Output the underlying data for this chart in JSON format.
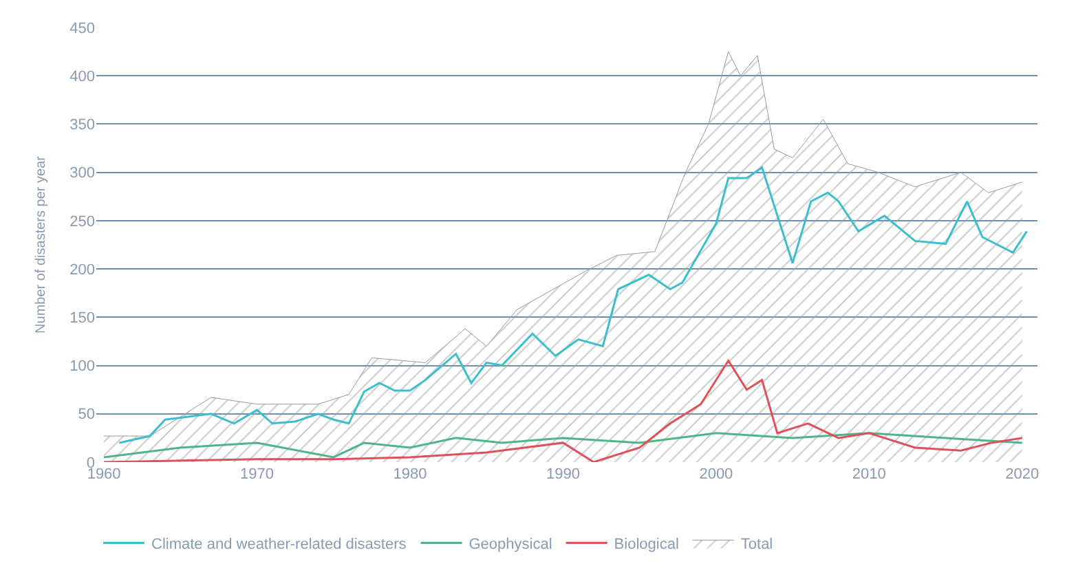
{
  "chart_data": {
    "type": "line",
    "ylabel": "Number of disasters per year",
    "xlim": [
      1959.5,
      2021
    ],
    "xticks": [
      1960,
      1970,
      1980,
      1990,
      2000,
      2010,
      2020
    ],
    "ylim": [
      0,
      450
    ],
    "yticks": [
      0,
      50,
      100,
      150,
      200,
      250,
      300,
      350,
      400,
      450
    ],
    "grid": "y",
    "legend": "bottom",
    "marker": "none",
    "line_style": "solid",
    "series": [
      {
        "name": "Total",
        "type": "area",
        "color": "#9a9a9a",
        "x": [
          1960,
          1963,
          1967,
          1970,
          1974,
          1976,
          1977.5,
          1981,
          1983.6,
          1985,
          1987,
          1991.5,
          1993.5,
          1996,
          1998,
          1999.5,
          2000.8,
          2001.6,
          2002.7,
          2003.8,
          2005,
          2007,
          2008.6,
          2010.6,
          2013,
          2016,
          2017.8,
          2020
        ],
        "values": [
          27,
          27,
          67,
          60,
          60,
          70,
          108,
          103,
          138,
          120,
          158,
          198,
          214,
          218,
          300,
          350,
          425,
          400,
          421,
          324,
          315,
          355,
          309,
          300,
          285,
          300,
          279,
          290
        ]
      },
      {
        "name": "Climate and weather-related disasters",
        "color": "#3bbfcf",
        "x": [
          1961,
          1963,
          1964,
          1967,
          1968.5,
          1970,
          1971,
          1972.5,
          1974,
          1975,
          1976,
          1977,
          1978,
          1979,
          1980,
          1981,
          1983,
          1984,
          1985,
          1986,
          1988,
          1989.5,
          1991,
          1992.6,
          1993.6,
          1995.6,
          1997,
          1997.8,
          2000,
          2000.8,
          2002,
          2003,
          2005,
          2006.2,
          2007.3,
          2008,
          2009.3,
          2011,
          2013,
          2015,
          2016.4,
          2017.4,
          2019.4,
          2020.3
        ],
        "values": [
          20,
          27,
          44,
          50,
          40,
          54,
          40,
          42,
          50,
          44,
          40,
          73,
          82,
          74,
          74,
          85,
          112,
          82,
          103,
          100,
          133,
          110,
          127,
          120,
          179,
          194,
          179,
          186,
          247,
          294,
          294,
          305,
          206,
          270,
          279,
          270,
          239,
          255,
          229,
          226,
          270,
          233,
          217,
          239
        ]
      },
      {
        "name": "Geophysical",
        "color": "#4cb58a",
        "x": [
          1960,
          1965,
          1970,
          1975,
          1977,
          1980,
          1983,
          1986,
          1990,
          1995,
          2000,
          2005,
          2010,
          2015,
          2020
        ],
        "values": [
          5,
          15,
          20,
          5,
          20,
          15,
          25,
          20,
          25,
          20,
          30,
          25,
          30,
          25,
          20
        ]
      },
      {
        "name": "Biological",
        "color": "#e0505a",
        "x": [
          1960,
          1970,
          1975,
          1980,
          1985,
          1990,
          1992,
          1995,
          1997,
          1999,
          2000.8,
          2002,
          2003,
          2004,
          2006,
          2008,
          2010,
          2013,
          2016,
          2018,
          2020
        ],
        "values": [
          0,
          3,
          3,
          5,
          10,
          20,
          0,
          15,
          40,
          60,
          105,
          75,
          85,
          30,
          40,
          25,
          30,
          15,
          12,
          20,
          25
        ]
      }
    ]
  }
}
